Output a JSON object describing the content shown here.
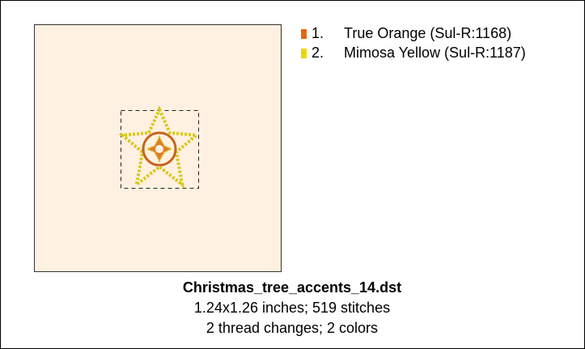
{
  "legend": [
    {
      "number": "1.",
      "name": "True Orange (Sul-R:1168)",
      "color": "#e8650f"
    },
    {
      "number": "2.",
      "name": "Mimosa Yellow (Sul-R:1187)",
      "color": "#eed600"
    }
  ],
  "file": {
    "name": "Christmas_tree_accents_14.dst",
    "dimensions": "1.24x1.26 inches; 519 stitches",
    "summary": "2 thread changes; 2 colors"
  }
}
